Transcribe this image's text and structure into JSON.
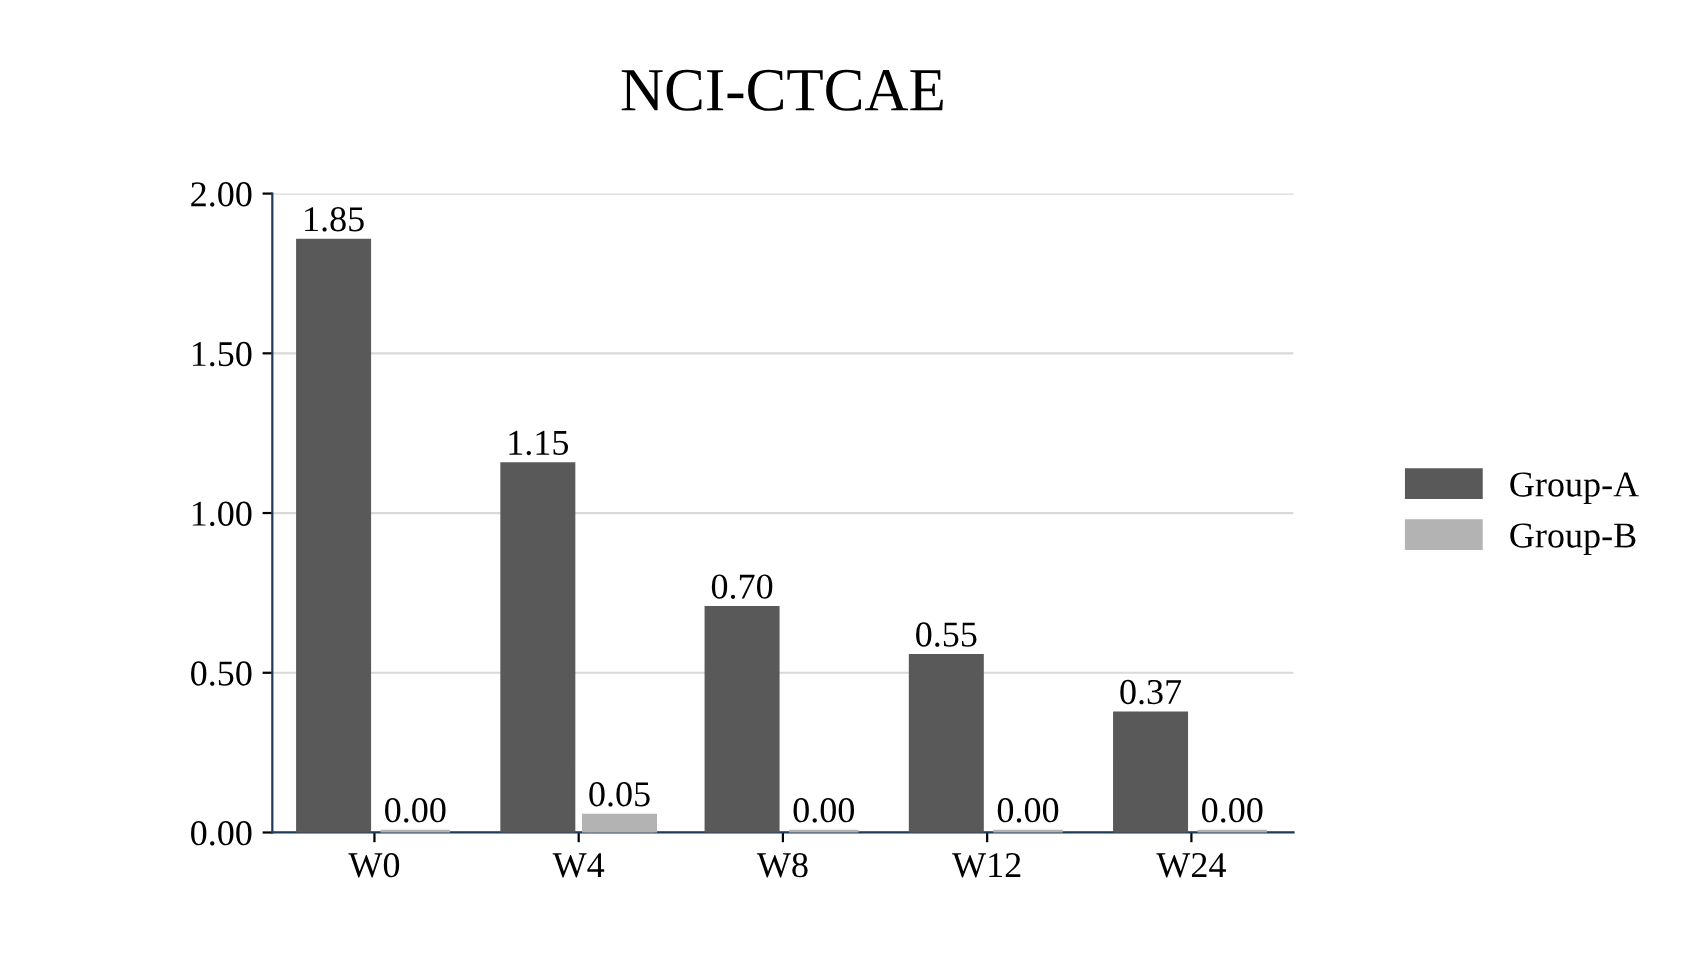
{
  "chart_data": {
    "type": "bar",
    "title": "NCI-CTCAE",
    "categories": [
      "W0",
      "W4",
      "W8",
      "W12",
      "W24"
    ],
    "series": [
      {
        "name": "Group-A",
        "color": "#595959",
        "values": [
          1.85,
          1.15,
          0.7,
          0.55,
          0.37
        ],
        "value_labels": [
          "1.85",
          "1.15",
          "0.70",
          "0.55",
          "0.37"
        ]
      },
      {
        "name": "Group-B",
        "color": "#b3b3b3",
        "values": [
          0.0,
          0.05,
          0.0,
          0.0,
          0.0
        ],
        "value_labels": [
          "0.00",
          "0.05",
          "0.00",
          "0.00",
          "0.00"
        ]
      }
    ],
    "ylim": [
      0,
      2
    ],
    "yticks": [
      {
        "value": 0,
        "label": "0.00"
      },
      {
        "value": 0.5,
        "label": "0.50"
      },
      {
        "value": 1,
        "label": "1.00"
      },
      {
        "value": 1.5,
        "label": "1.50"
      },
      {
        "value": 2,
        "label": "2.00"
      }
    ],
    "grid": "y",
    "legend": "right"
  }
}
